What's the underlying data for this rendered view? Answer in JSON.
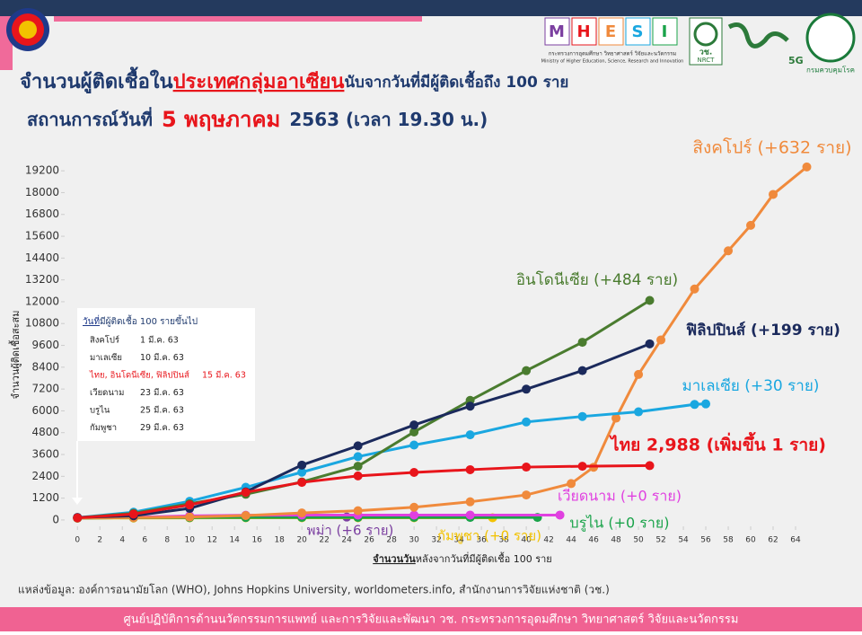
{
  "header": {
    "title_1": "จำนวนผู้ติดเชื้อใน",
    "title_highlight": "ประเทศกลุ่มอาเซียน",
    "title_2": "นับจากวันที่มีผู้ติดเชื้อถึง 100 ราย",
    "subtitle_1": "สถานการณ์วันที่",
    "subtitle_date": "5 พฤษภาคม",
    "subtitle_2": "2563  (เวลา 19.30 น.)"
  },
  "logos": {
    "mhesi": [
      "M",
      "H",
      "E",
      "S",
      "I"
    ],
    "mhesi_th": "กระทรวงการอุดมศึกษา วิทยาศาสตร์ วิจัยและนวัตกรรม",
    "mhesi_en": "Ministry of Higher Education, Science, Research and Innovation",
    "nrct": "วช.",
    "nrct_en": "NRCT",
    "fiveg": "5G",
    "ddc": "กรมควบคุมโรค"
  },
  "notes_box": {
    "title_1": "วันที่",
    "title_2": "มีผู้ติดเชื้อ 100 รายขึ้นไป",
    "rows": [
      [
        "สิงคโปร์",
        "1 มี.ค. 63"
      ],
      [
        "มาเลเซีย",
        "10 มี.ค. 63"
      ],
      [
        "ไทย, อินโดนีเซีย, ฟิลิปปินส์",
        "15 มี.ค. 63"
      ],
      [
        "เวียดนาม",
        "23 มี.ค. 63"
      ],
      [
        "บรูไน",
        "25 มี.ค. 63"
      ],
      [
        "กัมพูชา",
        "29 มี.ค. 63"
      ]
    ]
  },
  "source": "แหล่งข้อมูล: องค์การอนามัยโลก (WHO), Johns Hopkins University, worldometers.info, สำนักงานการวิจัยแห่งชาติ (วช.)",
  "footer": "ศูนย์ปฏิบัติการด้านนวัตกรรมการแพทย์ และการวิจัยและพัฒนา  วช.   กระทรวงการอุดมศึกษา วิทยาศาสตร์ วิจัยและนวัตกรรม",
  "chart_data": {
    "type": "line",
    "xlabel_1": "จำนวนวัน",
    "xlabel_2": "หลังจากวันที่มีผู้ติดเชื้อ 100 ราย",
    "ylabel": "จำนวนผู้ติดเชื้อสะสม",
    "xlim": [
      -1.3,
      66
    ],
    "ylim": [
      -300,
      19800
    ],
    "grid": false,
    "xticks": [
      0,
      2,
      4,
      6,
      8,
      10,
      12,
      14,
      16,
      18,
      20,
      22,
      24,
      26,
      28,
      30,
      32,
      34,
      36,
      38,
      40,
      42,
      44,
      46,
      48,
      50,
      52,
      54,
      56,
      58,
      60,
      62,
      64
    ],
    "yticks": [
      0,
      1200,
      2400,
      3600,
      4800,
      6000,
      7200,
      8400,
      9600,
      10800,
      12000,
      13200,
      14400,
      15600,
      16800,
      18000,
      19200
    ],
    "series": [
      {
        "name": "สิงคโปร์ (+632 ราย)",
        "color": "#f08a3c",
        "x": [
          0,
          5,
          10,
          15,
          20,
          25,
          30,
          35,
          40,
          44,
          46,
          48,
          50,
          52,
          55,
          58,
          60,
          62,
          65
        ],
        "values": [
          106,
          130,
          166,
          243,
          385,
          509,
          700,
          1000,
          1375,
          2000,
          2900,
          5600,
          8000,
          9900,
          12700,
          14800,
          16200,
          17900,
          19410
        ]
      },
      {
        "name": "อินโดนีเซีย (+484 ราย)",
        "color": "#4a7c2f",
        "x": [
          0,
          5,
          10,
          15,
          20,
          25,
          30,
          35,
          40,
          45,
          51
        ],
        "values": [
          117,
          369,
          893,
          1414,
          2092,
          2956,
          4839,
          6575,
          8211,
          9771,
          12071
        ]
      },
      {
        "name": "ฟิลิปปินส์ (+199 ราย)",
        "color": "#1b2a5c",
        "x": [
          0,
          5,
          10,
          15,
          20,
          25,
          30,
          35,
          40,
          45,
          51
        ],
        "values": [
          140,
          230,
          636,
          1546,
          3018,
          4076,
          5223,
          6259,
          7192,
          8212,
          9684
        ]
      },
      {
        "name": "มาเลเซีย (+30 ราย)",
        "color": "#1aa7e0",
        "x": [
          0,
          5,
          10,
          15,
          20,
          25,
          30,
          35,
          40,
          45,
          50,
          55,
          56
        ],
        "values": [
          129,
          428,
          1030,
          1796,
          2626,
          3483,
          4119,
          4683,
          5389,
          5691,
          5945,
          6353,
          6383
        ]
      },
      {
        "name": "ไทย 2,988 (เพิ่มขึ้น 1 ราย)",
        "color": "#e8151b",
        "x": [
          0,
          5,
          10,
          15,
          20,
          25,
          30,
          35,
          40,
          45,
          51
        ],
        "values": [
          114,
          322,
          827,
          1524,
          2067,
          2423,
          2613,
          2765,
          2907,
          2954,
          2988
        ]
      },
      {
        "name": "เวียดนาม (+0 ราย)",
        "color": "#e040e0",
        "x": [
          0,
          5,
          10,
          15,
          20,
          25,
          30,
          35,
          43
        ],
        "values": [
          113,
          153,
          227,
          262,
          266,
          268,
          270,
          270,
          271
        ]
      },
      {
        "name": "บรูไน (+0 ราย)",
        "color": "#1aa34a",
        "x": [
          0,
          5,
          10,
          15,
          20,
          25,
          30,
          35,
          41
        ],
        "values": [
          104,
          127,
          135,
          136,
          138,
          138,
          138,
          138,
          138
        ]
      },
      {
        "name": "กัมพูชา (+0 ราย)",
        "color": "#f2c200",
        "x": [
          0,
          5,
          10,
          15,
          20,
          25,
          30,
          37
        ],
        "values": [
          103,
          109,
          114,
          119,
          122,
          122,
          122,
          122
        ]
      },
      {
        "name": "พม่า (+6 ราย)",
        "color": "#7b3fa0",
        "x": [
          0,
          5,
          10,
          15,
          20,
          24
        ],
        "values": [
          110,
          121,
          144,
          146,
          151,
          161
        ]
      }
    ]
  }
}
